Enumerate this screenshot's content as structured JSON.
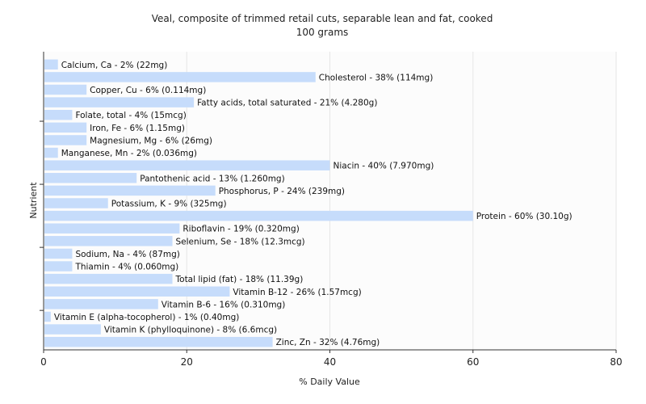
{
  "chart_data": {
    "type": "bar",
    "orientation": "horizontal",
    "title": "Veal, composite of trimmed retail cuts, separable lean and fat, cooked",
    "subtitle": "100 grams",
    "xlabel": "% Daily Value",
    "ylabel": "Nutrient",
    "xlim": [
      0,
      80
    ],
    "xticks": [
      "0",
      "20",
      "40",
      "60",
      "80"
    ],
    "grid": true,
    "legend": "none",
    "colors": {
      "bar": "#c6dcfb",
      "grid": "#e6e6e6",
      "axis": "#333333",
      "plot_background": "#fcfcfc"
    },
    "categories": [
      "Calcium, Ca",
      "Cholesterol",
      "Copper, Cu",
      "Fatty acids, total saturated",
      "Folate, total",
      "Iron, Fe",
      "Magnesium, Mg",
      "Manganese, Mn",
      "Niacin",
      "Pantothenic acid",
      "Phosphorus, P",
      "Potassium, K",
      "Protein",
      "Riboflavin",
      "Selenium, Se",
      "Sodium, Na",
      "Thiamin",
      "Total lipid (fat)",
      "Vitamin B-12",
      "Vitamin B-6",
      "Vitamin E (alpha-tocopherol)",
      "Vitamin K (phylloquinone)",
      "Zinc, Zn"
    ],
    "values": [
      2,
      38,
      6,
      21,
      4,
      6,
      6,
      2,
      40,
      13,
      24,
      9,
      60,
      19,
      18,
      4,
      4,
      18,
      26,
      16,
      1,
      8,
      32
    ],
    "labels": [
      "Calcium, Ca - 2% (22mg)",
      "Cholesterol - 38% (114mg)",
      "Copper, Cu - 6% (0.114mg)",
      "Fatty acids, total saturated - 21% (4.280g)",
      "Folate, total - 4% (15mcg)",
      "Iron, Fe - 6% (1.15mg)",
      "Magnesium, Mg - 6% (26mg)",
      "Manganese, Mn - 2% (0.036mg)",
      "Niacin - 40% (7.970mg)",
      "Pantothenic acid - 13% (1.260mg)",
      "Phosphorus, P - 24% (239mg)",
      "Potassium, K - 9% (325mg)",
      "Protein - 60% (30.10g)",
      "Riboflavin - 19% (0.320mg)",
      "Selenium, Se - 18% (12.3mcg)",
      "Sodium, Na - 4% (87mg)",
      "Thiamin - 4% (0.060mg)",
      "Total lipid (fat) - 18% (11.39g)",
      "Vitamin B-12 - 26% (1.57mcg)",
      "Vitamin B-6 - 16% (0.310mg)",
      "Vitamin E (alpha-tocopherol) - 1% (0.40mg)",
      "Vitamin K (phylloquinone) - 8% (6.6mcg)",
      "Zinc, Zn - 32% (4.76mg)"
    ]
  }
}
